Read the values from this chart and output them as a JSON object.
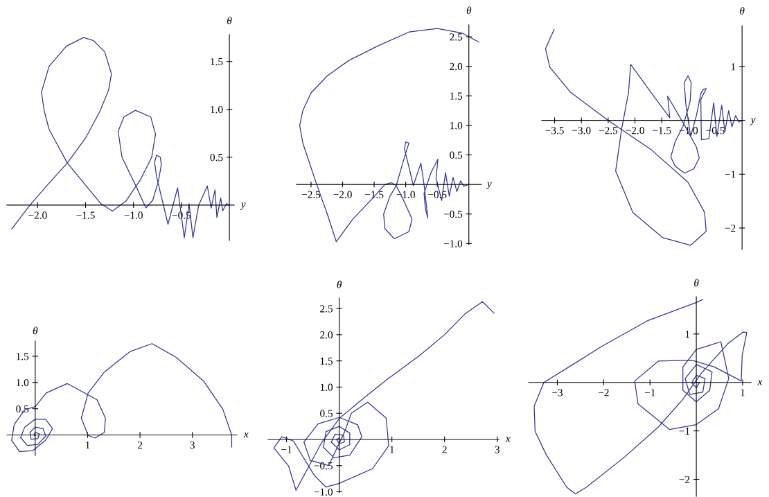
{
  "chart_data": [
    {
      "type": "line",
      "xlabel": "y",
      "ylabel": "θ",
      "xlim": [
        -2.32,
        0.05
      ],
      "ylim": [
        -0.37,
        1.78
      ],
      "grid": false,
      "xticks": [
        {
          "value": -2.0,
          "label": "−2.0"
        },
        {
          "value": -1.5,
          "label": "−1.5"
        },
        {
          "value": -1.0,
          "label": "−1.0"
        },
        {
          "value": -0.5,
          "label": "−0.5"
        }
      ],
      "yticks": [
        {
          "value": 0.5,
          "label": "0.5"
        },
        {
          "value": 1.0,
          "label": "1.0"
        },
        {
          "value": 1.5,
          "label": "1.5"
        }
      ],
      "series": [
        {
          "color": "#33339a",
          "x": [
            -2.27,
            -2.08,
            -1.88,
            -1.69,
            -1.5,
            -1.35,
            -1.26,
            -1.23,
            -1.3,
            -1.42,
            -1.52,
            -1.7,
            -1.88,
            -1.96,
            -1.93,
            -1.88,
            -1.69,
            -1.46,
            -1.34,
            -1.22,
            -1.08,
            -1.0,
            -0.93,
            -0.81,
            -0.77,
            -0.82,
            -0.98,
            -1.1,
            -1.16,
            -1.12,
            -0.98,
            -0.87,
            -0.8,
            -0.74,
            -0.71,
            -0.72,
            -0.76,
            -0.78,
            -0.76,
            -0.7,
            -0.64,
            -0.54,
            -0.47,
            -0.42,
            -0.38,
            -0.32,
            -0.27,
            -0.23,
            -0.19,
            -0.15,
            -0.13,
            -0.09,
            -0.07,
            -0.03,
            0.0
          ],
          "values": [
            -0.25,
            0.0,
            0.23,
            0.44,
            0.7,
            0.98,
            1.2,
            1.37,
            1.6,
            1.72,
            1.75,
            1.66,
            1.45,
            1.18,
            0.98,
            0.79,
            0.44,
            0.16,
            0.015,
            -0.063,
            0.04,
            0.16,
            0.26,
            0.5,
            0.74,
            0.92,
            0.99,
            0.92,
            0.77,
            0.5,
            0.21,
            -0.03,
            0.05,
            0.25,
            0.42,
            0.5,
            0.52,
            0.45,
            0.3,
            0.05,
            -0.2,
            0.18,
            -0.34,
            0.015,
            -0.34,
            0.0,
            0.11,
            0.2,
            -0.03,
            0.16,
            -0.13,
            0.075,
            -0.06,
            0.015,
            0.0
          ]
        }
      ]
    },
    {
      "type": "line",
      "xlabel": "y",
      "ylabel": "θ",
      "xlim": [
        -2.73,
        0.2
      ],
      "ylim": [
        -1.02,
        2.7
      ],
      "grid": false,
      "xticks": [
        {
          "value": -2.5,
          "label": "−2.5"
        },
        {
          "value": -2.0,
          "label": "−2.0"
        },
        {
          "value": -1.5,
          "label": "−1.5"
        },
        {
          "value": -1.0,
          "label": "−1.0"
        },
        {
          "value": -0.5,
          "label": "−0.5"
        }
      ],
      "yticks": [
        {
          "value": -1.0,
          "label": "−1.0"
        },
        {
          "value": -0.5,
          "label": "−0.5"
        },
        {
          "value": 0.5,
          "label": "0.5"
        },
        {
          "value": 1.0,
          "label": "1.0"
        },
        {
          "value": 1.5,
          "label": "1.5"
        },
        {
          "value": 2.0,
          "label": "2.0"
        },
        {
          "value": 2.5,
          "label": "2.5"
        }
      ],
      "series": [
        {
          "color": "#33339a",
          "x": [
            0.16,
            -0.1,
            -0.5,
            -0.95,
            -1.45,
            -1.9,
            -2.24,
            -2.5,
            -2.63,
            -2.68,
            -2.63,
            -2.41,
            -2.24,
            -2.1,
            -1.84,
            -1.52,
            -1.33,
            -1.23,
            -1.15,
            -1.02,
            -0.9,
            -0.95,
            -1.18,
            -1.33,
            -1.35,
            -1.25,
            -1.15,
            -1.04,
            -0.98,
            -0.95,
            -1.0,
            -1.02,
            -0.95,
            -0.88,
            -0.76,
            -0.71,
            -0.65,
            -0.69,
            -0.71,
            -0.6,
            -0.49,
            -0.52,
            -0.43,
            -0.37,
            -0.31,
            -0.25,
            -0.19,
            -0.13,
            -0.08,
            0.0
          ],
          "values": [
            2.41,
            2.56,
            2.64,
            2.58,
            2.34,
            2.1,
            1.84,
            1.55,
            1.25,
            1.0,
            0.7,
            0.0,
            -0.51,
            -0.97,
            -0.59,
            -0.23,
            0.0,
            0.03,
            -0.02,
            -0.3,
            -0.59,
            -0.8,
            -0.92,
            -0.75,
            -0.5,
            -0.2,
            -0.02,
            0.39,
            0.6,
            0.7,
            0.72,
            0.6,
            0.3,
            -0.02,
            0.36,
            0.0,
            -0.57,
            -0.4,
            -0.15,
            0.2,
            0.43,
            0.1,
            -0.27,
            0.2,
            -0.2,
            0.12,
            -0.12,
            0.06,
            -0.03,
            0.0
          ]
        }
      ]
    },
    {
      "type": "line",
      "xlabel": "y",
      "ylabel": "θ",
      "xlim": [
        -3.74,
        0.05
      ],
      "ylim": [
        -2.4,
        1.76
      ],
      "grid": false,
      "xticks": [
        {
          "value": -3.5,
          "label": "−3.5"
        },
        {
          "value": -3.0,
          "label": "−3.0"
        },
        {
          "value": -2.5,
          "label": "−2.5"
        },
        {
          "value": -2.0,
          "label": "−2.0"
        },
        {
          "value": -1.5,
          "label": "−1.5"
        },
        {
          "value": -1.0,
          "label": "−1.0"
        },
        {
          "value": -0.5,
          "label": "−0.5"
        }
      ],
      "yticks": [
        {
          "value": -2,
          "label": "−2"
        },
        {
          "value": -1,
          "label": "−1"
        },
        {
          "value": 1,
          "label": "1"
        }
      ],
      "series": [
        {
          "color": "#33339a",
          "x": [
            -3.51,
            -3.67,
            -3.59,
            -3.2,
            -2.5,
            -1.69,
            -1.01,
            -0.7,
            -0.67,
            -0.96,
            -1.48,
            -2.04,
            -2.36,
            -2.25,
            -2.12,
            -2.08,
            -1.7,
            -1.35,
            -1.39,
            -1.07,
            -0.85,
            -0.8,
            -0.9,
            -1.07,
            -1.25,
            -1.33,
            -1.25,
            -1.1,
            -0.97,
            -0.95,
            -1.01,
            -1.08,
            -1.05,
            -0.96,
            -0.85,
            -0.77,
            -0.72,
            -0.67,
            -0.77,
            -0.76,
            -0.62,
            -0.53,
            -0.47,
            -0.38,
            -0.32,
            -0.25,
            -0.19,
            -0.12,
            -0.06,
            0.0
          ],
          "values": [
            1.69,
            1.33,
            0.99,
            0.52,
            0.0,
            -0.55,
            -1.15,
            -1.71,
            -2.06,
            -2.32,
            -2.18,
            -1.71,
            -0.94,
            -0.17,
            0.52,
            1.04,
            0.52,
            0.05,
            0.45,
            -0.1,
            -0.5,
            -0.7,
            -0.9,
            -0.98,
            -0.85,
            -0.68,
            -0.4,
            -0.1,
            0.35,
            0.7,
            0.83,
            0.7,
            0.3,
            -0.3,
            0.1,
            0.5,
            0.58,
            0.59,
            0.39,
            -0.36,
            -0.34,
            0.33,
            -0.3,
            0.28,
            -0.21,
            0.18,
            -0.12,
            0.09,
            -0.03,
            0.0
          ]
        }
      ]
    },
    {
      "type": "line",
      "xlabel": "x",
      "ylabel": "θ",
      "xlim": [
        -0.54,
        3.85
      ],
      "ylim": [
        -0.39,
        1.79
      ],
      "grid": false,
      "xticks": [
        1,
        2,
        3
      ],
      "yticks": [
        {
          "value": 0.5,
          "label": "0.5"
        },
        {
          "value": 1.0,
          "label": "1.0"
        },
        {
          "value": 1.5,
          "label": "1.5"
        }
      ],
      "series": [
        {
          "color": "#33339a",
          "x": [
            3.75,
            3.75,
            3.58,
            3.22,
            2.69,
            2.23,
            1.81,
            1.32,
            1.01,
            0.88,
            1.01,
            1.14,
            1.32,
            1.34,
            1.18,
            0.61,
            0.21,
            0.0,
            -0.2,
            -0.4,
            -0.45,
            -0.3,
            -0.05,
            0.2,
            0.33,
            0.2,
            0.0,
            -0.2,
            -0.28,
            -0.15,
            0.05,
            0.2,
            0.15,
            0.0,
            -0.1,
            -0.08,
            0.05,
            0.08,
            0.0,
            -0.03,
            0.0,
            0.0
          ],
          "values": [
            -0.23,
            0.0,
            0.49,
            1.02,
            1.48,
            1.74,
            1.59,
            1.2,
            0.8,
            0.32,
            -0.01,
            -0.06,
            0.05,
            0.32,
            0.67,
            0.98,
            0.8,
            0.54,
            0.48,
            0.2,
            -0.1,
            -0.32,
            -0.3,
            -0.1,
            0.12,
            0.3,
            0.3,
            0.15,
            -0.05,
            -0.2,
            -0.18,
            -0.02,
            0.12,
            0.15,
            0.05,
            -0.08,
            -0.07,
            0.02,
            0.05,
            0.0,
            -0.02,
            0.0
          ]
        }
      ]
    },
    {
      "type": "line",
      "xlabel": "x",
      "ylabel": "θ",
      "xlim": [
        -1.35,
        3.03
      ],
      "ylim": [
        -1.02,
        2.7
      ],
      "grid": false,
      "xticks": [
        {
          "value": -1,
          "label": "−1"
        },
        1,
        2,
        3
      ],
      "yticks": [
        {
          "value": -1.0,
          "label": "−1.0"
        },
        {
          "value": -0.5,
          "label": "−0.5"
        },
        {
          "value": 0.5,
          "label": "0.5"
        },
        {
          "value": 1.0,
          "label": "1.0"
        },
        {
          "value": 1.5,
          "label": "1.5"
        },
        {
          "value": 2.0,
          "label": "2.0"
        },
        {
          "value": 2.5,
          "label": "2.5"
        }
      ],
      "series": [
        {
          "color": "#33339a",
          "x": [
            2.94,
            2.72,
            2.39,
            2.0,
            1.51,
            0.89,
            0.37,
            0.01,
            -0.34,
            -0.82,
            -0.96,
            -1.24,
            -1.09,
            -0.87,
            -0.47,
            -0.25,
            0.0,
            0.63,
            0.94,
            0.89,
            0.54,
            0.23,
            0.1,
            -0.2,
            -0.55,
            -0.67,
            -0.4,
            0.0,
            0.35,
            0.43,
            0.2,
            -0.1,
            -0.3,
            -0.25,
            0.0,
            0.2,
            0.2,
            0.0,
            -0.15,
            -0.08,
            0.08,
            0.1,
            0.0,
            -0.05,
            0.0,
            0.0
          ],
          "values": [
            2.41,
            2.63,
            2.4,
            2.0,
            1.59,
            1.13,
            0.71,
            0.41,
            -0.07,
            -0.97,
            -0.51,
            -0.16,
            0.05,
            -0.03,
            -0.69,
            -0.91,
            -0.84,
            -0.56,
            -0.12,
            0.41,
            0.71,
            0.5,
            0.14,
            -0.5,
            -0.4,
            -0.05,
            0.3,
            0.42,
            0.28,
            0.05,
            -0.3,
            -0.35,
            -0.15,
            0.15,
            0.25,
            0.12,
            -0.1,
            -0.2,
            -0.05,
            0.1,
            0.08,
            -0.05,
            -0.08,
            0.0,
            0.03,
            0.0
          ]
        }
      ]
    },
    {
      "type": "line",
      "xlabel": "x",
      "ylabel": "θ",
      "xlim": [
        -3.62,
        1.18
      ],
      "ylim": [
        -2.35,
        1.77
      ],
      "grid": false,
      "xticks": [
        {
          "value": -3,
          "label": "−3"
        },
        {
          "value": -2,
          "label": "−2"
        },
        {
          "value": -1,
          "label": "−1"
        },
        1
      ],
      "yticks": [
        {
          "value": -2,
          "label": "−2"
        },
        {
          "value": -1,
          "label": "−1"
        },
        1
      ],
      "series": [
        {
          "color": "#33339a",
          "x": [
            0.14,
            0.0,
            -1.06,
            -2.03,
            -2.75,
            -3.29,
            -3.5,
            -3.48,
            -3.24,
            -2.8,
            -2.61,
            -2.37,
            -1.55,
            -0.82,
            -0.29,
            0.1,
            0.68,
            1.01,
            1.09,
            0.99,
            0.97,
            0.39,
            -0.1,
            -0.82,
            -1.33,
            -1.26,
            -0.58,
            0.0,
            0.48,
            0.7,
            0.53,
            0.0,
            -0.29,
            -0.29,
            0.0,
            0.29,
            0.34,
            0.0,
            -0.24,
            -0.14,
            0.14,
            0.19,
            0.0,
            -0.1,
            0.0,
            0.07,
            0.0
          ],
          "values": [
            1.71,
            1.65,
            1.27,
            0.75,
            0.32,
            0.0,
            -0.49,
            -1.01,
            -1.49,
            -2.16,
            -2.3,
            -2.16,
            -1.54,
            -0.92,
            -0.35,
            0.18,
            0.8,
            1.04,
            1.03,
            0.56,
            0.03,
            0.32,
            0.46,
            0.44,
            0.03,
            -0.44,
            -0.97,
            -0.87,
            -0.54,
            0.08,
            0.84,
            0.68,
            0.32,
            -0.16,
            -0.4,
            -0.16,
            0.22,
            0.37,
            0.08,
            -0.25,
            -0.2,
            0.08,
            0.15,
            -0.01,
            -0.11,
            0.0,
            0.0
          ]
        }
      ]
    }
  ]
}
